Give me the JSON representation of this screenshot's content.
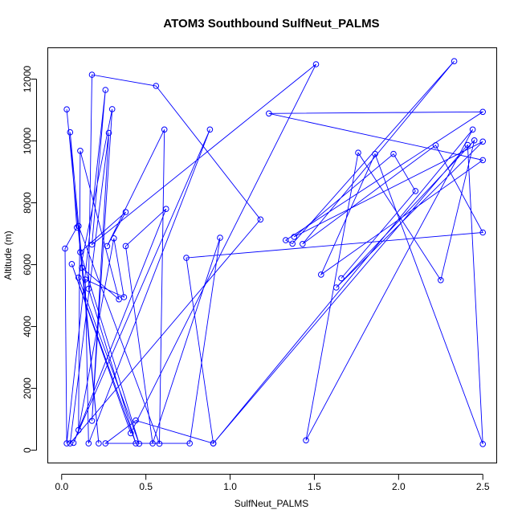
{
  "chart_data": {
    "type": "line",
    "title": "ATOM3 Southbound SulfNeut_PALMS",
    "xlabel": "SulfNeut_PALMS",
    "ylabel": "Altitude (m)",
    "xlim": [
      -0.08,
      2.58
    ],
    "ylim": [
      -400,
      13000
    ],
    "xticks": [
      0.0,
      0.5,
      1.0,
      1.5,
      2.0,
      2.5
    ],
    "xtick_labels": [
      "0.0",
      "0.5",
      "1.0",
      "1.5",
      "2.0",
      "2.5"
    ],
    "yticks": [
      0,
      2000,
      4000,
      6000,
      8000,
      10000,
      12000
    ],
    "ytick_labels": [
      "0",
      "2000",
      "4000",
      "6000",
      "8000",
      "10000",
      "12000"
    ],
    "grid": false,
    "series": [
      {
        "color": "#0000ff",
        "marker": "open-circle",
        "points": [
          {
            "x": 0.03,
            "y": 11020
          },
          {
            "x": 0.22,
            "y": 220
          },
          {
            "x": 0.05,
            "y": 10280
          },
          {
            "x": 0.09,
            "y": 7200
          },
          {
            "x": 0.02,
            "y": 6520
          },
          {
            "x": 0.03,
            "y": 220
          },
          {
            "x": 0.26,
            "y": 11650
          },
          {
            "x": 0.18,
            "y": 6650
          },
          {
            "x": 1.51,
            "y": 12480
          },
          {
            "x": 0.41,
            "y": 550
          },
          {
            "x": 0.06,
            "y": 6020
          },
          {
            "x": 0.44,
            "y": 220
          },
          {
            "x": 0.16,
            "y": 5220
          },
          {
            "x": 0.18,
            "y": 12140
          },
          {
            "x": 0.56,
            "y": 11780
          },
          {
            "x": 1.18,
            "y": 7460
          },
          {
            "x": 0.05,
            "y": 220
          },
          {
            "x": 0.28,
            "y": 10260
          },
          {
            "x": 0.18,
            "y": 950
          },
          {
            "x": 0.3,
            "y": 11030
          },
          {
            "x": 0.1,
            "y": 5580
          },
          {
            "x": 0.46,
            "y": 210
          },
          {
            "x": 0.11,
            "y": 6400
          },
          {
            "x": 0.38,
            "y": 7700
          },
          {
            "x": 0.27,
            "y": 6600
          },
          {
            "x": 0.61,
            "y": 10370
          },
          {
            "x": 0.58,
            "y": 210
          },
          {
            "x": 0.1,
            "y": 7250
          },
          {
            "x": 0.12,
            "y": 5900
          },
          {
            "x": 0.34,
            "y": 4880
          },
          {
            "x": 0.11,
            "y": 9680
          },
          {
            "x": 0.1,
            "y": 650
          },
          {
            "x": 0.31,
            "y": 6850
          },
          {
            "x": 0.37,
            "y": 4950
          },
          {
            "x": 0.14,
            "y": 5520
          },
          {
            "x": 0.16,
            "y": 220
          },
          {
            "x": 0.88,
            "y": 10370
          },
          {
            "x": 0.07,
            "y": 240
          },
          {
            "x": 0.62,
            "y": 7800
          },
          {
            "x": 0.38,
            "y": 6600
          },
          {
            "x": 0.54,
            "y": 220
          },
          {
            "x": 0.94,
            "y": 6870
          },
          {
            "x": 0.76,
            "y": 220
          },
          {
            "x": 0.26,
            "y": 220
          },
          {
            "x": 0.44,
            "y": 960
          },
          {
            "x": 0.9,
            "y": 220
          },
          {
            "x": 0.74,
            "y": 6220
          },
          {
            "x": 2.5,
            "y": 7040
          },
          {
            "x": 2.22,
            "y": 9860
          },
          {
            "x": 1.43,
            "y": 6670
          },
          {
            "x": 2.33,
            "y": 12580
          },
          {
            "x": 1.37,
            "y": 6680
          },
          {
            "x": 1.33,
            "y": 6790
          },
          {
            "x": 2.5,
            "y": 10940
          },
          {
            "x": 1.23,
            "y": 10890
          },
          {
            "x": 2.5,
            "y": 9380
          },
          {
            "x": 1.54,
            "y": 5680
          },
          {
            "x": 1.86,
            "y": 9580
          },
          {
            "x": 2.5,
            "y": 200
          },
          {
            "x": 2.41,
            "y": 9870
          },
          {
            "x": 0.9,
            "y": 220
          },
          {
            "x": 2.44,
            "y": 10370
          },
          {
            "x": 1.45,
            "y": 320
          },
          {
            "x": 1.76,
            "y": 9620
          },
          {
            "x": 2.25,
            "y": 5500
          },
          {
            "x": 2.45,
            "y": 10020
          },
          {
            "x": 1.63,
            "y": 5260
          },
          {
            "x": 2.5,
            "y": 9980
          },
          {
            "x": 1.38,
            "y": 6900
          },
          {
            "x": 1.97,
            "y": 9580
          },
          {
            "x": 2.1,
            "y": 8380
          },
          {
            "x": 1.66,
            "y": 5560
          }
        ]
      }
    ]
  }
}
